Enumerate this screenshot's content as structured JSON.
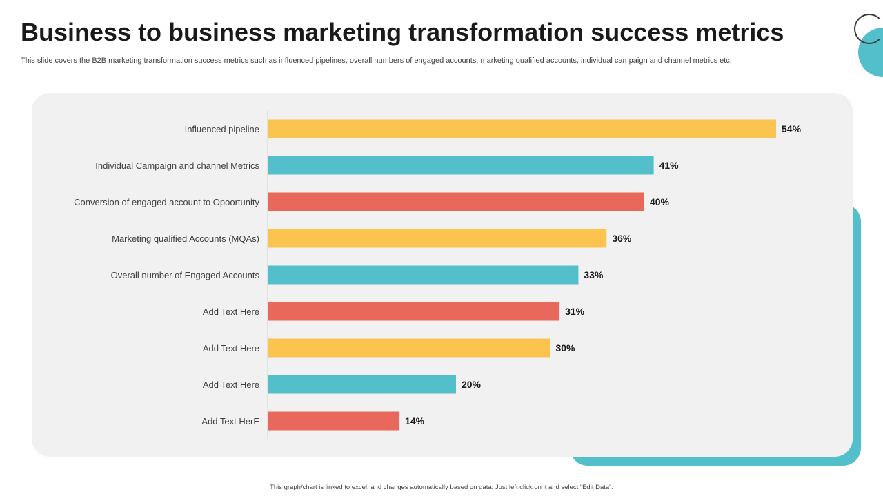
{
  "slide": {
    "title": "Business to business marketing transformation success metrics",
    "subtitle": "This slide covers the B2B marketing transformation success metrics such as influenced pipelines, overall numbers of engaged accounts, marketing qualified accounts, individual campaign and channel metrics etc.",
    "footer": "This graph/chart is linked to excel, and changes automatically based on data. Just left click on it and select “Edit Data”."
  },
  "colors": {
    "yellow": "#fac44e",
    "teal": "#52bfca",
    "red": "#e8695b",
    "accent": "#52bfca",
    "card_bg": "#f1f1f1"
  },
  "chart_data": {
    "type": "bar",
    "orientation": "horizontal",
    "categories": [
      "Influenced pipeline",
      "Individual Campaign and channel Metrics",
      "Conversion of engaged account to Opoortunity",
      "Marketing qualified Accounts (MQAs)",
      "Overall number of Engaged Accounts",
      "Add Text Here",
      "Add Text Here",
      "Add Text Here",
      "Add Text HerE"
    ],
    "values": [
      54,
      41,
      40,
      36,
      33,
      31,
      30,
      20,
      14
    ],
    "value_labels": [
      "54%",
      "41%",
      "40%",
      "36%",
      "33%",
      "31%",
      "30%",
      "20%",
      "14%"
    ],
    "bar_colors": [
      "yellow",
      "teal",
      "red",
      "yellow",
      "teal",
      "red",
      "yellow",
      "teal",
      "red"
    ],
    "unit": "%",
    "xlim": [
      0,
      60
    ],
    "grid": false,
    "legend": "none"
  }
}
